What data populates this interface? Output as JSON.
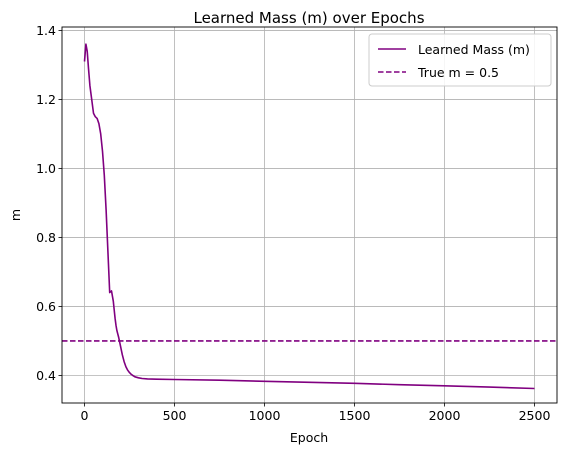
{
  "chart_data": {
    "type": "line",
    "title": "Learned Mass (m) over Epochs",
    "xlabel": "Epoch",
    "ylabel": "m",
    "xlim": [
      -125,
      2625
    ],
    "ylim": [
      0.32,
      1.41
    ],
    "xticks": [
      0,
      500,
      1000,
      1500,
      2000,
      2500
    ],
    "yticks": [
      0.4,
      0.6,
      0.8,
      1.0,
      1.2,
      1.4
    ],
    "xtick_labels": [
      "0",
      "500",
      "1000",
      "1500",
      "2000",
      "2500"
    ],
    "ytick_labels": [
      "0.4",
      "0.6",
      "0.8",
      "1.0",
      "1.2",
      "1.4"
    ],
    "grid": true,
    "legend_position": "top-right",
    "series": [
      {
        "name": "Learned Mass (m)",
        "color": "#800080",
        "style": "solid",
        "x": [
          0,
          8,
          15,
          22,
          30,
          40,
          50,
          60,
          70,
          80,
          90,
          100,
          110,
          120,
          130,
          140,
          150,
          160,
          165,
          170,
          175,
          180,
          190,
          200,
          210,
          220,
          230,
          240,
          250,
          260,
          270,
          280,
          300,
          320,
          350,
          400,
          500,
          750,
          1000,
          1250,
          1500,
          1750,
          2000,
          2250,
          2500
        ],
        "y": [
          1.31,
          1.36,
          1.34,
          1.29,
          1.24,
          1.2,
          1.16,
          1.15,
          1.145,
          1.13,
          1.1,
          1.05,
          0.98,
          0.88,
          0.76,
          0.64,
          0.645,
          0.615,
          0.59,
          0.565,
          0.545,
          0.53,
          0.51,
          0.485,
          0.46,
          0.44,
          0.425,
          0.415,
          0.408,
          0.403,
          0.399,
          0.396,
          0.393,
          0.391,
          0.39,
          0.389,
          0.388,
          0.386,
          0.383,
          0.38,
          0.377,
          0.373,
          0.37,
          0.366,
          0.362
        ]
      }
    ],
    "reference_lines": [
      {
        "name": "True m = 0.5",
        "y": 0.5,
        "color": "#800080",
        "style": "dashed"
      }
    ]
  }
}
